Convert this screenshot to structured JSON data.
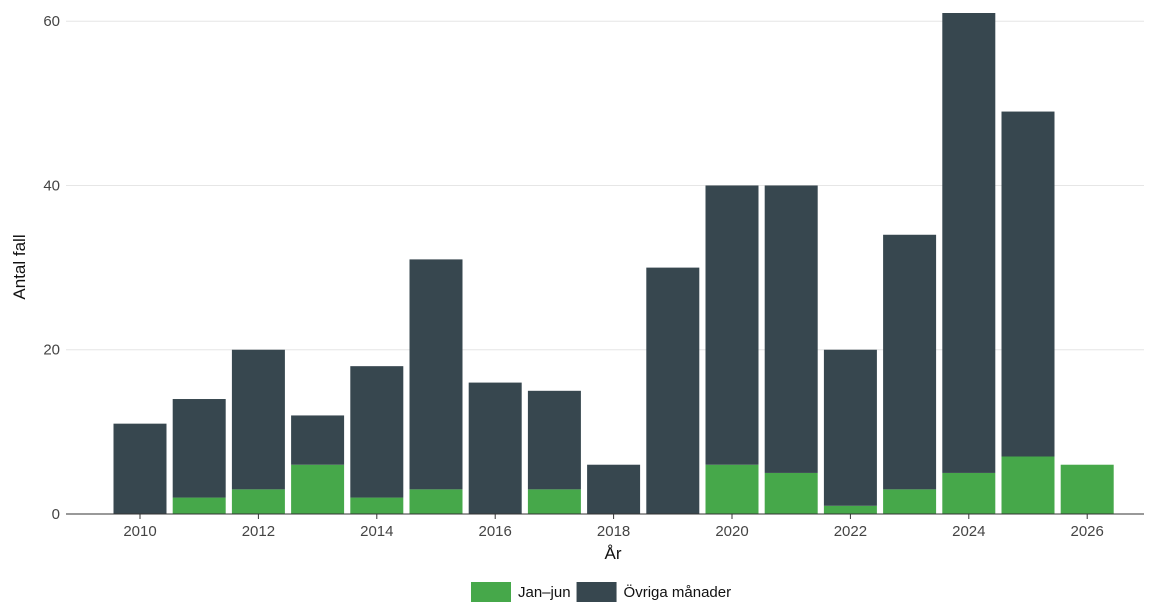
{
  "chart_data": {
    "type": "bar",
    "stacked": true,
    "xlabel": "År",
    "ylabel": "Antal fall",
    "ylim": [
      0,
      61
    ],
    "xlim": [
      2009,
      2027
    ],
    "x_ticks": [
      2010,
      2012,
      2014,
      2016,
      2018,
      2020,
      2022,
      2024,
      2026
    ],
    "y_ticks": [
      0,
      20,
      40,
      60
    ],
    "grid": "horizontal",
    "legend": "bottom",
    "x": [
      2010,
      2011,
      2012,
      2013,
      2014,
      2015,
      2016,
      2017,
      2018,
      2019,
      2020,
      2021,
      2022,
      2023,
      2024,
      2025,
      2026
    ],
    "series": [
      {
        "name": "Jan–jun",
        "color": "#46a84a",
        "values": [
          0,
          2,
          3,
          6,
          2,
          3,
          0,
          3,
          0,
          0,
          6,
          5,
          1,
          3,
          5,
          7,
          6
        ]
      },
      {
        "name": "Övriga månader",
        "color": "#37474f",
        "values": [
          11,
          12,
          17,
          6,
          16,
          28,
          16,
          12,
          6,
          30,
          34,
          35,
          19,
          31,
          56,
          42,
          0
        ]
      }
    ]
  }
}
